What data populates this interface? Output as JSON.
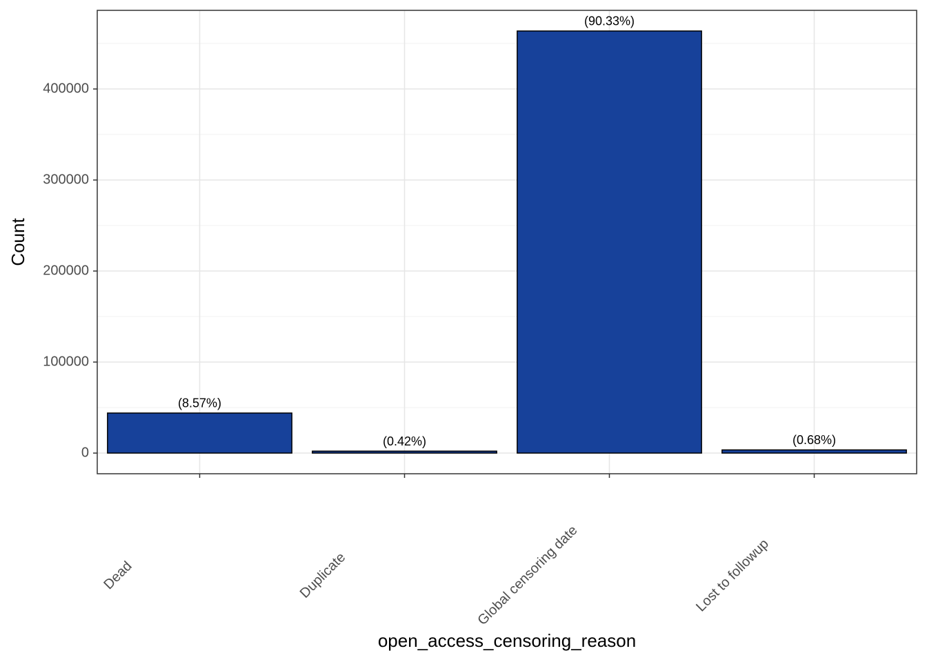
{
  "chart_data": {
    "type": "bar",
    "x_label": "open_access_censoring_reason",
    "y_label": "Count",
    "categories": [
      "Dead",
      "Duplicate",
      "Global censoring date",
      "Lost to followup"
    ],
    "values": [
      44000,
      2150,
      463700,
      3500
    ],
    "labels": [
      "(8.57%)",
      "(0.42%)",
      "(90.33%)",
      "(0.68%)"
    ],
    "color": "#17419a",
    "ylim": [
      -22700,
      486400
    ],
    "yticks": [
      0,
      100000,
      200000,
      300000,
      400000
    ],
    "minor_yticks": [
      50000,
      150000,
      250000,
      350000,
      450000
    ],
    "grid": true
  }
}
